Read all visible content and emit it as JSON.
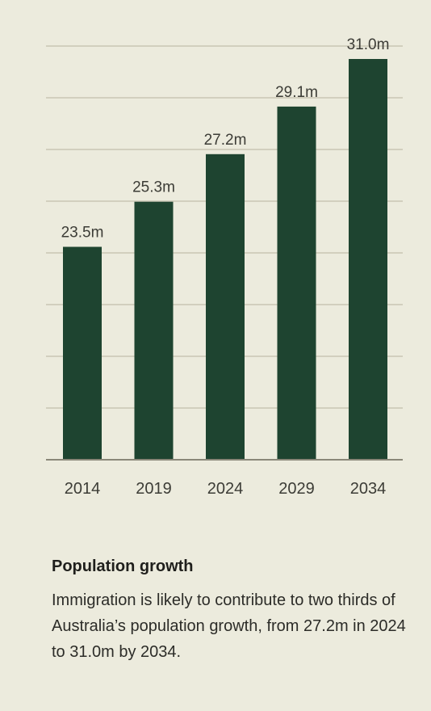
{
  "chart_data": {
    "type": "bar",
    "categories": [
      "2014",
      "2019",
      "2024",
      "2029",
      "2034"
    ],
    "values": [
      23.5,
      25.3,
      27.2,
      29.1,
      31.0
    ],
    "data_labels": [
      "23.5m",
      "25.3m",
      "27.2m",
      "29.1m",
      "31.0m"
    ],
    "ylim": [
      15,
      31.0
    ],
    "grid": true,
    "colors": {
      "bar": "#1e4430",
      "grid": "#c9c6b4",
      "baseline": "#8a8778",
      "label": "#3c3c36"
    }
  },
  "caption": {
    "title": "Population growth",
    "body": "Immigration is likely to contribute to two thirds of Australia’s population growth, from 27.2m in 2024 to 31.0m by 2034."
  }
}
